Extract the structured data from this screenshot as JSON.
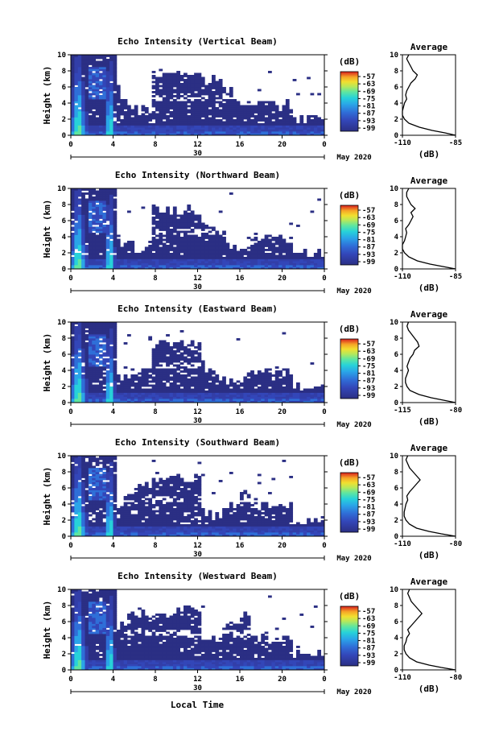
{
  "chart_data": {
    "type": "heatmap",
    "panels": [
      {
        "title": "Echo Intensity (Vertical Beam)",
        "profile_xlim": [
          -110,
          -85
        ],
        "profile_ticks": [
          "-110",
          "-85"
        ],
        "profile_points": [
          [
            0.0,
            -85
          ],
          [
            0.3,
            -90
          ],
          [
            0.6,
            -96
          ],
          [
            1.0,
            -102
          ],
          [
            1.5,
            -107
          ],
          [
            2.0,
            -109
          ],
          [
            2.5,
            -110
          ],
          [
            3.0,
            -110
          ],
          [
            3.5,
            -109.5
          ],
          [
            4.0,
            -109
          ],
          [
            4.5,
            -108
          ],
          [
            5.0,
            -108.5
          ],
          [
            5.5,
            -108
          ],
          [
            6.0,
            -107
          ],
          [
            6.5,
            -106
          ],
          [
            7.0,
            -104
          ],
          [
            7.5,
            -103
          ],
          [
            8.0,
            -105
          ],
          [
            8.5,
            -106
          ],
          [
            9.0,
            -107
          ],
          [
            9.5,
            -108
          ],
          [
            10.0,
            -107
          ]
        ]
      },
      {
        "title": "Echo Intensity (Northward Beam)",
        "profile_xlim": [
          -110,
          -85
        ],
        "profile_ticks": [
          "-110",
          "-85"
        ],
        "profile_points": [
          [
            0.0,
            -85
          ],
          [
            0.3,
            -91
          ],
          [
            0.6,
            -97
          ],
          [
            1.0,
            -103
          ],
          [
            1.5,
            -107
          ],
          [
            2.0,
            -109
          ],
          [
            2.5,
            -110
          ],
          [
            3.0,
            -110
          ],
          [
            3.5,
            -109
          ],
          [
            4.0,
            -108.5
          ],
          [
            4.5,
            -108
          ],
          [
            5.0,
            -108.5
          ],
          [
            5.5,
            -107
          ],
          [
            6.0,
            -106
          ],
          [
            6.5,
            -105
          ],
          [
            7.0,
            -106
          ],
          [
            7.5,
            -104
          ],
          [
            8.0,
            -106
          ],
          [
            8.5,
            -107
          ],
          [
            9.0,
            -108
          ],
          [
            9.5,
            -108
          ],
          [
            10.0,
            -107
          ]
        ]
      },
      {
        "title": "Echo Intensity (Eastward Beam)",
        "profile_xlim": [
          -115,
          -80
        ],
        "profile_ticks": [
          "-115",
          "-80"
        ],
        "profile_points": [
          [
            0.0,
            -80
          ],
          [
            0.3,
            -88
          ],
          [
            0.6,
            -96
          ],
          [
            1.0,
            -104
          ],
          [
            1.5,
            -110
          ],
          [
            2.0,
            -112
          ],
          [
            2.5,
            -113
          ],
          [
            3.0,
            -113
          ],
          [
            3.5,
            -112
          ],
          [
            4.0,
            -111
          ],
          [
            4.5,
            -112
          ],
          [
            5.0,
            -111
          ],
          [
            5.5,
            -110
          ],
          [
            6.0,
            -108
          ],
          [
            6.5,
            -107
          ],
          [
            7.0,
            -104
          ],
          [
            7.5,
            -105
          ],
          [
            8.0,
            -107
          ],
          [
            8.5,
            -109
          ],
          [
            9.0,
            -111
          ],
          [
            9.5,
            -112
          ],
          [
            10.0,
            -111
          ]
        ]
      },
      {
        "title": "Echo Intensity (Southward Beam)",
        "profile_xlim": [
          -110,
          -80
        ],
        "profile_ticks": [
          "-110",
          "-80"
        ],
        "profile_points": [
          [
            0.0,
            -80
          ],
          [
            0.3,
            -88
          ],
          [
            0.6,
            -95
          ],
          [
            1.0,
            -102
          ],
          [
            1.5,
            -106
          ],
          [
            2.0,
            -108
          ],
          [
            2.5,
            -109
          ],
          [
            3.0,
            -109
          ],
          [
            3.5,
            -108.5
          ],
          [
            4.0,
            -108
          ],
          [
            4.5,
            -107
          ],
          [
            5.0,
            -107.5
          ],
          [
            5.5,
            -106
          ],
          [
            6.0,
            -104
          ],
          [
            6.5,
            -102
          ],
          [
            7.0,
            -100
          ],
          [
            7.5,
            -102
          ],
          [
            8.0,
            -104
          ],
          [
            8.5,
            -106
          ],
          [
            9.0,
            -107
          ],
          [
            9.5,
            -108
          ],
          [
            10.0,
            -107
          ]
        ]
      },
      {
        "title": "Echo Intensity (Westward Beam)",
        "profile_xlim": [
          -110,
          -80
        ],
        "profile_ticks": [
          "-110",
          "-80"
        ],
        "profile_points": [
          [
            0.0,
            -80
          ],
          [
            0.3,
            -88
          ],
          [
            0.6,
            -95
          ],
          [
            1.0,
            -102
          ],
          [
            1.5,
            -106
          ],
          [
            2.0,
            -108
          ],
          [
            2.5,
            -109
          ],
          [
            3.0,
            -109
          ],
          [
            3.5,
            -108
          ],
          [
            4.0,
            -107.5
          ],
          [
            4.5,
            -106
          ],
          [
            5.0,
            -107
          ],
          [
            5.5,
            -105
          ],
          [
            6.0,
            -103
          ],
          [
            6.5,
            -101
          ],
          [
            7.0,
            -99
          ],
          [
            7.5,
            -101
          ],
          [
            8.0,
            -103
          ],
          [
            8.5,
            -105
          ],
          [
            9.0,
            -106
          ],
          [
            9.5,
            -107
          ],
          [
            10.0,
            -106
          ]
        ]
      }
    ],
    "ylabel": "Height (km)",
    "ylim": [
      0,
      10
    ],
    "yticks": [
      "0",
      "2",
      "4",
      "6",
      "8",
      "10"
    ],
    "xlim": [
      0,
      24
    ],
    "xticks": [
      "0",
      "4",
      "8",
      "12",
      "16",
      "20",
      "0"
    ],
    "date_label": "30",
    "month_label": "May 2020",
    "xlabel": "Local Time",
    "colorbar_unit": "(dB)",
    "colorbar_ticks": [
      "-57",
      "-63",
      "-69",
      "-75",
      "-81",
      "-87",
      "-93",
      "-99"
    ],
    "colorbar_colors": [
      "#2b2f84",
      "#3346b8",
      "#2f6fd8",
      "#2aa5e8",
      "#27d2d9",
      "#5fe6a0",
      "#b7e85a",
      "#f2df2f",
      "#f6a527",
      "#ee5a22",
      "#d81e1e"
    ],
    "profile_title": "Average",
    "profile_ylim": [
      0,
      10
    ],
    "profile_yticks": [
      "0",
      "2",
      "4",
      "6",
      "8",
      "10"
    ],
    "profile_xlabel": "(dB)",
    "colors": {
      "background": "#2b2f84",
      "mid": "#3346b8",
      "cyan": "#27d2d9",
      "yellow": "#f2df2f"
    }
  }
}
